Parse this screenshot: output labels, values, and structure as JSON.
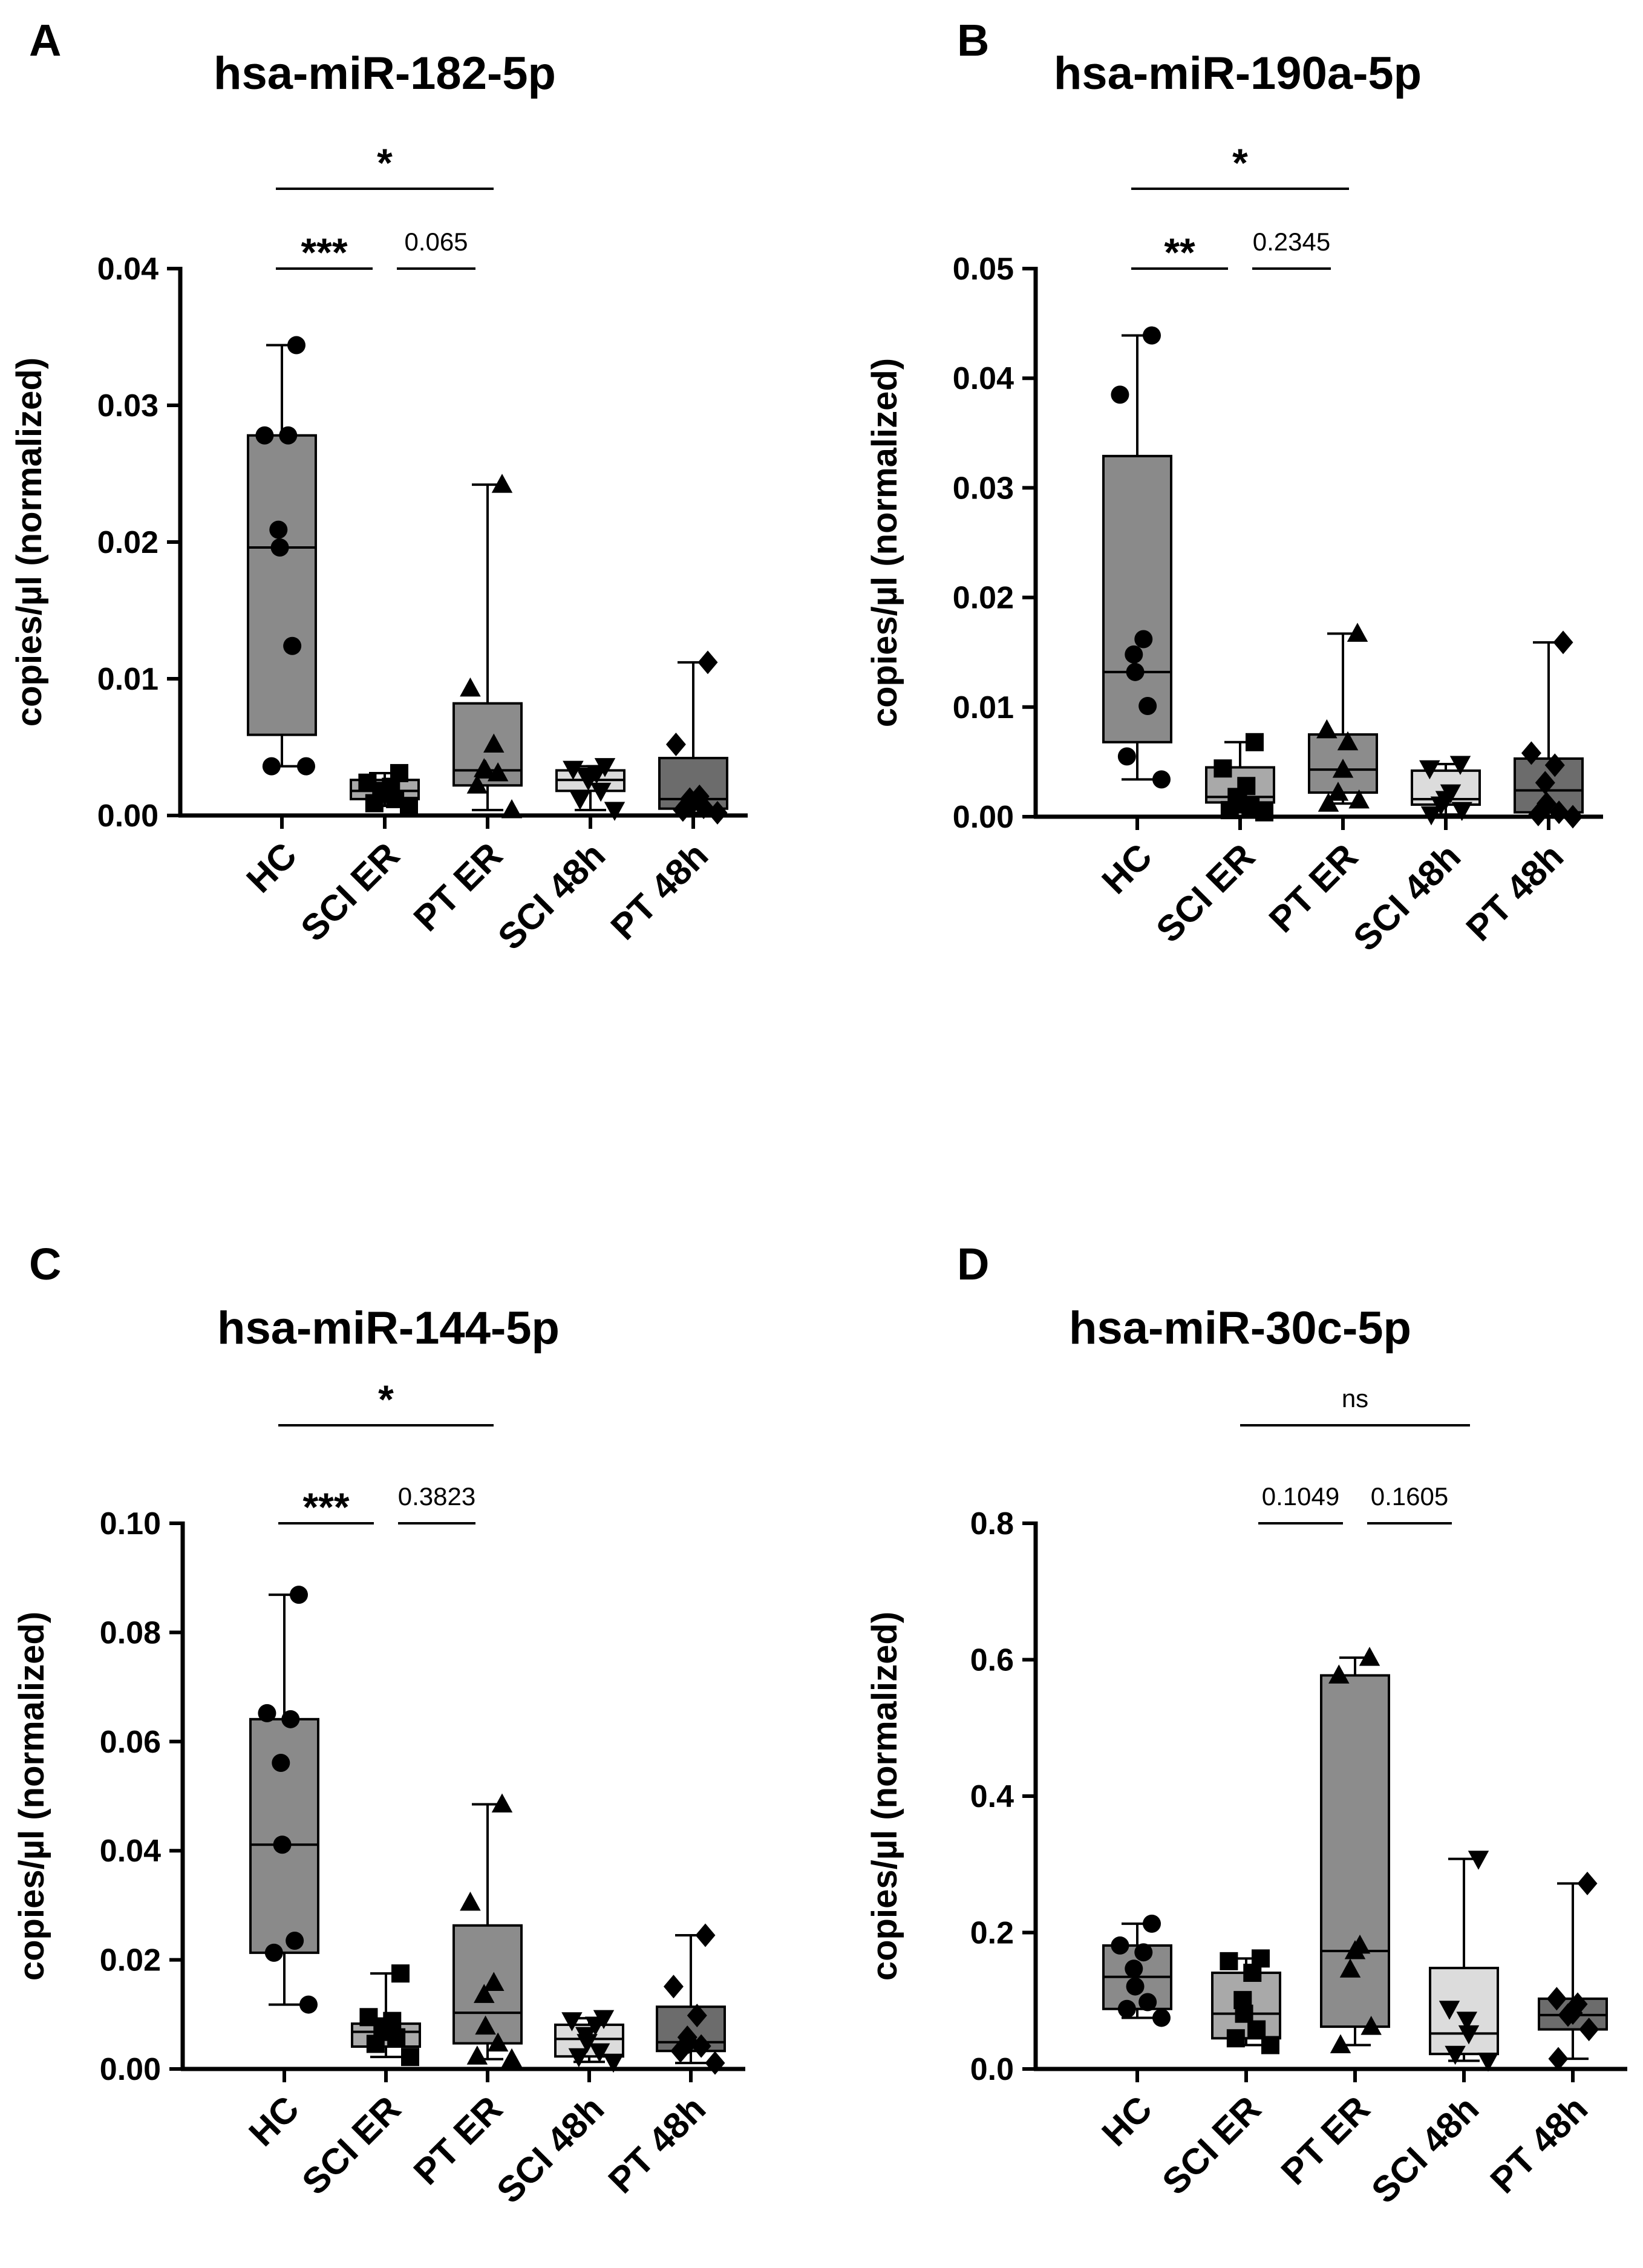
{
  "categories": [
    "HC",
    "SCI ER",
    "PT ER",
    "SCI 48h",
    "PT 48h"
  ],
  "ylabel": "copies/µl (normalized)",
  "group_fills": [
    "#8a8a8a",
    "#a9a9a9",
    "#8c8c8c",
    "#dcdcdc",
    "#6c6c6c"
  ],
  "group_markers": [
    "circle",
    "square",
    "triangle-up",
    "triangle-down",
    "diamond"
  ],
  "chart_data": [
    {
      "letter": "A",
      "type": "box",
      "title": "hsa-miR-182-5p",
      "ylim": [
        0,
        0.04
      ],
      "yticks": [
        "0.00",
        "0.01",
        "0.02",
        "0.03",
        "0.04"
      ],
      "yticks_values": [
        0,
        0.01,
        0.02,
        0.03,
        0.04
      ],
      "boxes": [
        {
          "min": 0.0036,
          "q1": 0.0059,
          "median": 0.0196,
          "q3": 0.0278,
          "max": 0.0344
        },
        {
          "min": 0.0007,
          "q1": 0.0012,
          "median": 0.0018,
          "q3": 0.0026,
          "max": 0.0031
        },
        {
          "min": 0.0004,
          "q1": 0.0022,
          "median": 0.0033,
          "q3": 0.0082,
          "max": 0.0242
        },
        {
          "min": 0.0004,
          "q1": 0.0018,
          "median": 0.0026,
          "q3": 0.0033,
          "max": 0.0036
        },
        {
          "min": 0.0002,
          "q1": 0.0005,
          "median": 0.0012,
          "q3": 0.0042,
          "max": 0.0112
        }
      ],
      "points": [
        [
          0.0344,
          0.0278,
          0.0278,
          0.0209,
          0.0196,
          0.0124,
          0.0036,
          0.0036
        ],
        [
          0.0031,
          0.0024,
          0.0021,
          0.0018,
          0.0016,
          0.0012,
          0.0009,
          0.0007
        ],
        [
          0.0242,
          0.0093,
          0.0052,
          0.0034,
          0.0033,
          0.0031,
          0.0022,
          0.0004
        ],
        [
          0.0036,
          0.0034,
          0.0031,
          0.0029,
          0.0026,
          0.0018,
          0.0012,
          0.0004
        ],
        [
          0.0112,
          0.0052,
          0.0014,
          0.0012,
          0.0008,
          0.0006,
          0.0004,
          0.0002
        ]
      ],
      "brackets": [
        {
          "from": 0,
          "to": 2,
          "label": "*",
          "kind": "star"
        },
        {
          "from": 0,
          "to": 1,
          "label": "***",
          "kind": "star"
        },
        {
          "from": 1,
          "to": 2,
          "label": "0.065",
          "kind": "p"
        }
      ]
    },
    {
      "letter": "B",
      "type": "box",
      "title": "hsa-miR-190a-5p",
      "ylim": [
        0,
        0.05
      ],
      "yticks": [
        "0.00",
        "0.01",
        "0.02",
        "0.03",
        "0.04",
        "0.05"
      ],
      "yticks_values": [
        0,
        0.01,
        0.02,
        0.03,
        0.04,
        0.05
      ],
      "boxes": [
        {
          "min": 0.0034,
          "q1": 0.0068,
          "median": 0.0132,
          "q3": 0.0329,
          "max": 0.0439
        },
        {
          "min": 0.0004,
          "q1": 0.0013,
          "median": 0.0018,
          "q3": 0.0045,
          "max": 0.0068
        },
        {
          "min": 0.0012,
          "q1": 0.0022,
          "median": 0.0043,
          "q3": 0.0075,
          "max": 0.0167
        },
        {
          "min": 0.0002,
          "q1": 0.0011,
          "median": 0.0016,
          "q3": 0.0042,
          "max": 0.0048
        },
        {
          "min": 0.0,
          "q1": 0.0004,
          "median": 0.0024,
          "q3": 0.0053,
          "max": 0.0159
        }
      ],
      "points": [
        [
          0.0439,
          0.0385,
          0.0162,
          0.0148,
          0.0132,
          0.0101,
          0.0055,
          0.0034
        ],
        [
          0.0068,
          0.0044,
          0.0028,
          0.0018,
          0.0012,
          0.0009,
          0.0006,
          0.0004
        ],
        [
          0.0167,
          0.0079,
          0.0068,
          0.0043,
          0.0022,
          0.0015,
          0.0012
        ],
        [
          0.0048,
          0.0044,
          0.0022,
          0.0016,
          0.0011,
          0.0006,
          0.0002
        ],
        [
          0.0159,
          0.0058,
          0.0047,
          0.0031,
          0.0012,
          0.0004,
          0.0002,
          0.0
        ]
      ],
      "brackets": [
        {
          "from": 0,
          "to": 2,
          "label": "*",
          "kind": "star"
        },
        {
          "from": 0,
          "to": 1,
          "label": "**",
          "kind": "star"
        },
        {
          "from": 1,
          "to": 2,
          "label": "0.2345",
          "kind": "p"
        }
      ]
    },
    {
      "letter": "C",
      "type": "box",
      "title": "hsa-miR-144-5p",
      "ylim": [
        0,
        0.1
      ],
      "yticks": [
        "0.00",
        "0.02",
        "0.04",
        "0.06",
        "0.08",
        "0.10"
      ],
      "yticks_values": [
        0,
        0.02,
        0.04,
        0.06,
        0.08,
        0.1
      ],
      "boxes": [
        {
          "min": 0.0118,
          "q1": 0.0213,
          "median": 0.0411,
          "q3": 0.0641,
          "max": 0.0869
        },
        {
          "min": 0.0022,
          "q1": 0.0041,
          "median": 0.0068,
          "q3": 0.0083,
          "max": 0.0175
        },
        {
          "min": 0.0018,
          "q1": 0.0047,
          "median": 0.0103,
          "q3": 0.0263,
          "max": 0.0485
        },
        {
          "min": 0.0013,
          "q1": 0.0023,
          "median": 0.0055,
          "q3": 0.0081,
          "max": 0.0093
        },
        {
          "min": 0.0011,
          "q1": 0.0033,
          "median": 0.0049,
          "q3": 0.0114,
          "max": 0.0245
        }
      ],
      "points": [
        [
          0.0869,
          0.0652,
          0.0641,
          0.0561,
          0.0411,
          0.0235,
          0.0213,
          0.0118
        ],
        [
          0.0175,
          0.0095,
          0.0088,
          0.0078,
          0.0068,
          0.0058,
          0.0046,
          0.0022
        ],
        [
          0.0485,
          0.0305,
          0.0158,
          0.0136,
          0.0078,
          0.0047,
          0.0023,
          0.0018
        ],
        [
          0.0093,
          0.0089,
          0.0081,
          0.0062,
          0.0049,
          0.0032,
          0.0023,
          0.0013
        ],
        [
          0.0245,
          0.0151,
          0.0098,
          0.0058,
          0.0049,
          0.0042,
          0.0033,
          0.0011
        ]
      ],
      "brackets": [
        {
          "from": 0,
          "to": 2,
          "label": "*",
          "kind": "star"
        },
        {
          "from": 0,
          "to": 1,
          "label": "***",
          "kind": "star"
        },
        {
          "from": 1,
          "to": 2,
          "label": "0.3823",
          "kind": "p"
        }
      ]
    },
    {
      "letter": "D",
      "type": "box",
      "title": "hsa-miR-30c-5p",
      "ylim": [
        0,
        0.8
      ],
      "yticks": [
        "0.0",
        "0.2",
        "0.4",
        "0.6",
        "0.8"
      ],
      "yticks_values": [
        0,
        0.2,
        0.4,
        0.6,
        0.8
      ],
      "boxes": [
        {
          "min": 0.075,
          "q1": 0.088,
          "median": 0.135,
          "q3": 0.181,
          "max": 0.213
        },
        {
          "min": 0.035,
          "q1": 0.045,
          "median": 0.081,
          "q3": 0.141,
          "max": 0.162
        },
        {
          "min": 0.035,
          "q1": 0.062,
          "median": 0.173,
          "q3": 0.577,
          "max": 0.603
        },
        {
          "min": 0.012,
          "q1": 0.022,
          "median": 0.052,
          "q3": 0.148,
          "max": 0.308
        },
        {
          "min": 0.015,
          "q1": 0.058,
          "median": 0.079,
          "q3": 0.103,
          "max": 0.272
        }
      ],
      "points": [
        [
          0.213,
          0.181,
          0.171,
          0.147,
          0.121,
          0.098,
          0.088,
          0.075
        ],
        [
          0.162,
          0.158,
          0.141,
          0.101,
          0.081,
          0.058,
          0.045,
          0.035
        ],
        [
          0.603,
          0.577,
          0.181,
          0.173,
          0.146,
          0.062,
          0.035
        ],
        [
          0.308,
          0.088,
          0.072,
          0.052,
          0.022,
          0.012
        ],
        [
          0.272,
          0.103,
          0.095,
          0.082,
          0.079,
          0.058,
          0.015
        ]
      ],
      "brackets": [
        {
          "from": 1,
          "to": 3,
          "label": "ns",
          "kind": "p"
        },
        {
          "from": 1,
          "to": 2,
          "label": "0.1049",
          "kind": "p"
        },
        {
          "from": 2,
          "to": 3,
          "label": "0.1605",
          "kind": "p"
        }
      ]
    }
  ]
}
